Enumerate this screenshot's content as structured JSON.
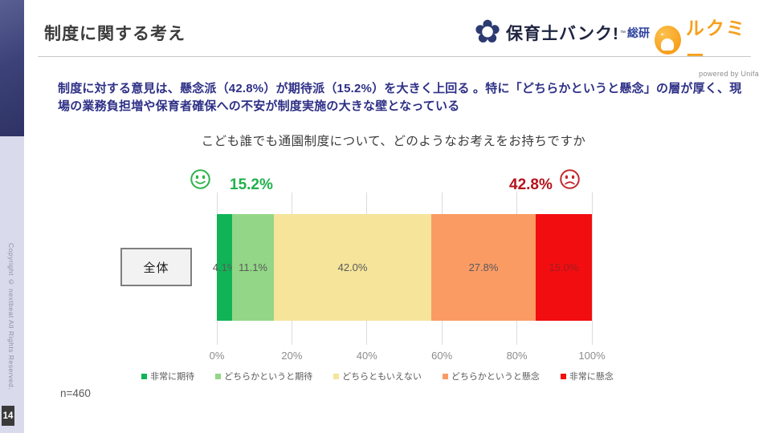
{
  "slide": {
    "title": "制度に関する考え",
    "page_number": "14",
    "copyright": "Copyright © nextbeat All Rights Reserved.",
    "summary": "制度に対する意見は、懸念派（42.8%）が期待派（15.2%）を大きく上回る 。特に「どちらかというと懸念」の層が厚く、現場の業務負担増や保育者確保への不安が制度実施の大きな壁となっている"
  },
  "logos": {
    "hoikushi_bank": {
      "text": "保育士バンク!",
      "tm": "™",
      "suffix": "総研"
    },
    "lookmee": {
      "text": "ルクミー",
      "powered_by": "powered by Unifa"
    }
  },
  "chart_data": {
    "type": "bar",
    "subtype": "stacked-horizontal",
    "title": "こども誰でも通園制度について、どのようなお考えをお持ちですか",
    "row_label": "全体",
    "categories": [
      "非常に期待",
      "どちらかというと期待",
      "どちらともいえない",
      "どちらかというと懸念",
      "非常に懸念"
    ],
    "values": [
      4.1,
      11.1,
      42.0,
      27.8,
      15.0
    ],
    "value_labels": [
      "4.1%",
      "11.1%",
      "42.0%",
      "27.8%",
      "15.0%"
    ],
    "colors": [
      "#10b457",
      "#93d687",
      "#f5e49a",
      "#fa9b64",
      "#f20d11"
    ],
    "label_colors": [
      "#595959",
      "#595959",
      "#595959",
      "#595959",
      "#a01d1d"
    ],
    "expect_total": {
      "label": "15.2%",
      "color": "#1fb24c"
    },
    "concern_total": {
      "label": "42.8%",
      "color": "#b5121b"
    },
    "x_ticks": [
      "0%",
      "20%",
      "40%",
      "60%",
      "80%",
      "100%"
    ],
    "xlim": [
      0,
      100
    ],
    "grid": "vertical",
    "legend_position": "bottom",
    "sample": "n=460"
  }
}
